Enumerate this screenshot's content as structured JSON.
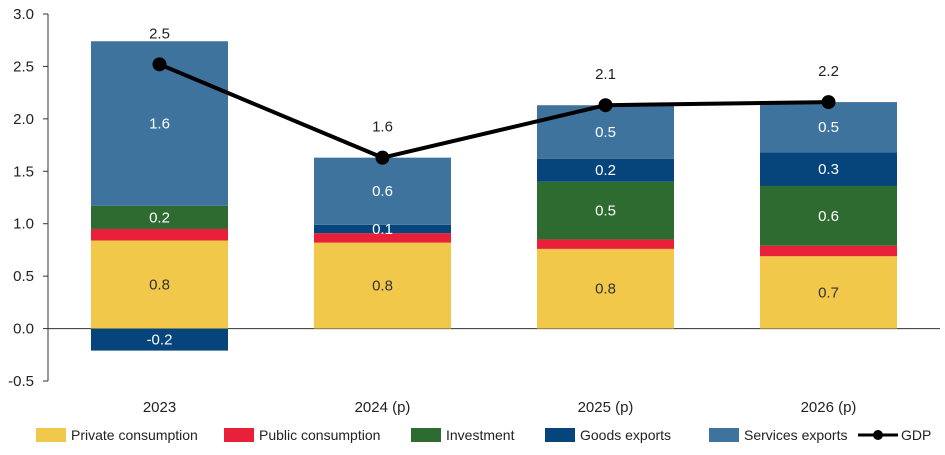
{
  "chart_data": {
    "type": "bar",
    "stacked": true,
    "categories": [
      "2023",
      "2024 (p)",
      "2025 (p)",
      "2026 (p)"
    ],
    "ylim": [
      -0.5,
      3.0
    ],
    "yticks": [
      "3.0",
      "2.5",
      "2.0",
      "1.5",
      "1.0",
      "0.5",
      "0.0",
      "-0.5"
    ],
    "ytick_values": [
      3.0,
      2.5,
      2.0,
      1.5,
      1.0,
      0.5,
      0.0,
      -0.5
    ],
    "grid": false,
    "legend_position": "bottom",
    "series": [
      {
        "name": "Private consumption",
        "color": "#F2C84B",
        "values": [
          0.84,
          0.82,
          0.76,
          0.69
        ],
        "labels": [
          "0.8",
          "0.8",
          "0.8",
          "0.7"
        ],
        "label_color": "#333333"
      },
      {
        "name": "Public consumption",
        "color": "#E8203A",
        "values": [
          0.11,
          0.09,
          0.09,
          0.1
        ],
        "labels": [
          "",
          "",
          "",
          ""
        ],
        "label_color": "#ffffff"
      },
      {
        "name": "Investment",
        "color": "#2E6B30",
        "values": [
          0.22,
          0.0,
          0.55,
          0.57
        ],
        "labels": [
          "0.2",
          "",
          "0.5",
          "0.6"
        ],
        "label_color": "#ffffff"
      },
      {
        "name": "Goods exports",
        "color": "#05457C",
        "values": [
          -0.21,
          0.08,
          0.22,
          0.32
        ],
        "labels": [
          "-0.2",
          "0.1",
          "0.2",
          "0.3"
        ],
        "label_color": "#ffffff"
      },
      {
        "name": "Services exports",
        "color": "#3E739E",
        "values": [
          1.57,
          0.64,
          0.51,
          0.48
        ],
        "labels": [
          "1.6",
          "0.6",
          "0.5",
          "0.5"
        ],
        "label_color": "#ffffff"
      }
    ],
    "line": {
      "name": "GDP",
      "color": "#000000",
      "values": [
        2.52,
        1.63,
        2.13,
        2.16
      ],
      "labels": [
        "2.5",
        "1.6",
        "2.1",
        "2.2"
      ]
    }
  }
}
